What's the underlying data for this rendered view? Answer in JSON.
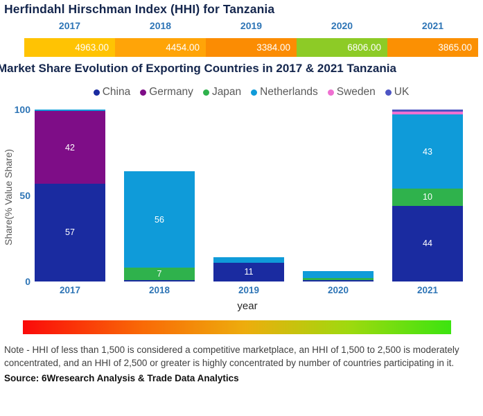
{
  "page": {
    "note": "Note - HHI of less than 1,500 is considered a competitive marketplace, an HHI of 1,500 to 2,500 is moderately concentrated, and an HHI of 2,500 or greater is highly concentrated by number of countries participating in it.",
    "source": "Source: 6Wresearch Analysis & Trade Data Analytics"
  },
  "colors": {
    "title_navy": "#14264D",
    "axis_blue": "#2E75B6",
    "legend_text": "#595959"
  },
  "chart_data": [
    {
      "type": "table",
      "title": "Herfindahl Hirschman Index (HHI) for Tanzania",
      "categories": [
        "2017",
        "2018",
        "2019",
        "2020",
        "2021"
      ],
      "values": [
        4963.0,
        4454.0,
        3384.0,
        6806.0,
        3865.0
      ],
      "cell_colors": [
        "#FFC303",
        "#FFA408",
        "#FB8C03",
        "#8DCB26",
        "#FB9003"
      ]
    },
    {
      "type": "bar",
      "stacked": true,
      "title": "Market Share Evolution of Exporting Countries in 2017 & 2021 Tanzania",
      "categories": [
        "2017",
        "2018",
        "2019",
        "2020",
        "2021"
      ],
      "series": [
        {
          "name": "China",
          "color": "#1A2BA0",
          "values": [
            57,
            1,
            11,
            1,
            44
          ]
        },
        {
          "name": "Germany",
          "color": "#7E0D87",
          "values": [
            42,
            0,
            0,
            0,
            0
          ]
        },
        {
          "name": "Japan",
          "color": "#2FB24C",
          "values": [
            0,
            7,
            0,
            1,
            10
          ]
        },
        {
          "name": "Netherlands",
          "color": "#0F9BD9",
          "values": [
            1,
            56,
            3,
            4,
            43
          ]
        },
        {
          "name": "Sweden",
          "color": "#EF70D1",
          "values": [
            0,
            0,
            0,
            0,
            2
          ]
        },
        {
          "name": "UK",
          "color": "#4D55C4",
          "values": [
            0,
            0,
            0,
            0,
            1
          ]
        }
      ],
      "xlabel": "year",
      "ylabel": "Share(% Value Share)",
      "ylim": [
        0,
        100
      ],
      "y_ticks": [
        0,
        50,
        100
      ],
      "legend_position": "top",
      "grid": false,
      "data_label_min": 5
    }
  ],
  "gradient_scale": {
    "stops": [
      "#FA0A0A",
      "#F96A06",
      "#EDAD0D",
      "#9FD90F",
      "#3CE410"
    ]
  }
}
